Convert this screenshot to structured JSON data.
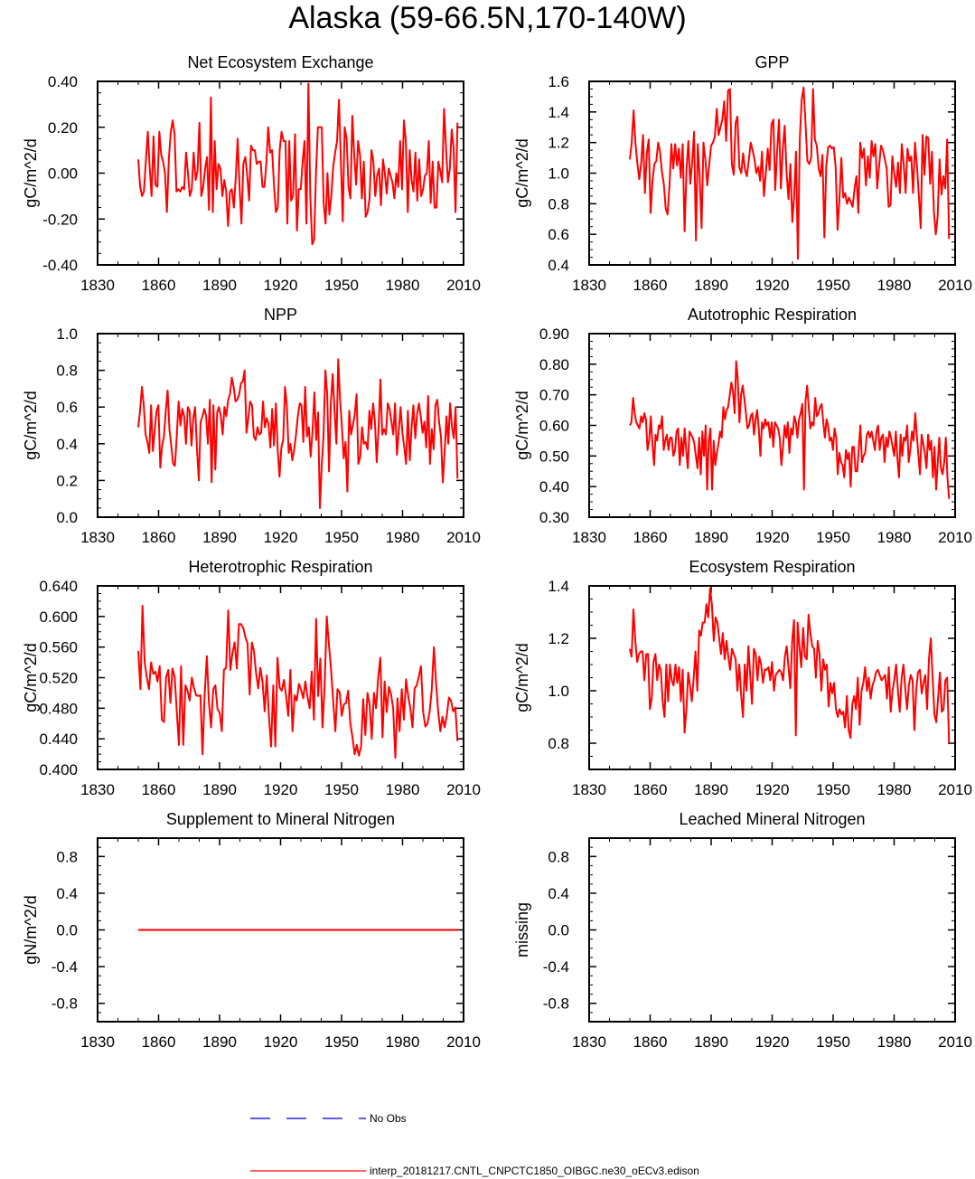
{
  "title": "Alaska (59-66.5N,170-140W)",
  "legend": [
    {
      "label": "No Obs",
      "color": "#0000cc",
      "style": "dashed"
    },
    {
      "label": "interp_20181217.CNTL_CNPCTC1850_OIBGC.ne30_oECv3.edison",
      "color": "#ff0000",
      "style": "solid"
    }
  ],
  "line_color": "#ff0000",
  "chart_data": [
    {
      "type": "line",
      "title": "Net Ecosystem Exchange",
      "ylabel": "gC/m^2/d",
      "xlim": [
        1830,
        2010
      ],
      "xticks": [
        1830,
        1860,
        1890,
        1920,
        1950,
        1980,
        2010
      ],
      "ylim": [
        -0.4,
        0.4
      ],
      "yticks": [
        "-0.40",
        "-0.20",
        "0.00",
        "0.20",
        "0.40"
      ],
      "x_start": 1850,
      "values": [
        0.06,
        -0.06,
        -0.1,
        -0.08,
        0.06,
        0.18,
        0.02,
        -0.1,
        0.16,
        -0.05,
        -0.06,
        0.18,
        0.08,
        0.05,
        0.0,
        -0.17,
        0.06,
        0.18,
        0.23,
        0.17,
        -0.08,
        -0.07,
        -0.08,
        -0.06,
        -0.07,
        0.09,
        0.0,
        -0.1,
        -0.07,
        0.09,
        -0.03,
        0.01,
        0.22,
        -0.1,
        -0.06,
        0.02,
        0.07,
        -0.16,
        0.33,
        -0.17,
        0.14,
        -0.07,
        0.04,
        0.02,
        -0.1,
        -0.03,
        -0.08,
        -0.23,
        -0.08,
        -0.07,
        -0.15,
        -0.02,
        0.15,
        -0.06,
        -0.22,
        0.04,
        0.07,
        -0.01,
        -0.12,
        0.12,
        0.1,
        0.1,
        0.04,
        0.05,
        0.05,
        -0.06,
        -0.06,
        0.04,
        0.2,
        0.09,
        0.1,
        -0.05,
        -0.17,
        -0.15,
        0.1,
        0.18,
        0.14,
        0.14,
        -0.22,
        0.14,
        -0.12,
        -0.1,
        0.17,
        -0.25,
        -0.07,
        -0.07,
        0.05,
        0.14,
        -0.22,
        0.39,
        -0.1,
        -0.31,
        -0.29,
        0.0,
        0.2,
        0.2,
        0.2,
        -0.13,
        -0.22,
        0.0,
        -0.18,
        -0.1,
        0.03,
        0.09,
        0.14,
        0.32,
        0.06,
        -0.21,
        0.2,
        0.15,
        -0.06,
        -0.11,
        0.25,
        0.08,
        -0.05,
        0.14,
        0.08,
        -0.11,
        0.05,
        -0.19,
        -0.17,
        -0.11,
        0.1,
        0.05,
        -0.1,
        -0.01,
        0.02,
        -0.14,
        0.06,
        0.0,
        -0.09,
        0.02,
        -0.01,
        -0.04,
        -0.11,
        0.0,
        -0.06,
        0.14,
        -0.07,
        0.23,
        0.14,
        -0.17,
        0.1,
        -0.03,
        -0.08,
        0.09,
        -0.12,
        0.06,
        -0.1,
        -0.07,
        -0.01,
        0.0,
        0.14,
        -0.13,
        0.05,
        -0.15,
        -0.15,
        0.05,
        0.01,
        -0.04,
        0.28,
        0.11,
        -0.04,
        0.02,
        0.19,
        0.11,
        -0.17,
        0.22
      ]
    },
    {
      "type": "line",
      "title": "GPP",
      "ylabel": "gC/m^2/d",
      "xlim": [
        1830,
        2010
      ],
      "xticks": [
        1830,
        1860,
        1890,
        1920,
        1950,
        1980,
        2010
      ],
      "ylim": [
        0.4,
        1.6
      ],
      "yticks": [
        "0.4",
        "0.6",
        "0.8",
        "1.0",
        "1.2",
        "1.4",
        "1.6"
      ],
      "x_start": 1850,
      "values": [
        1.09,
        1.2,
        1.41,
        1.19,
        1.06,
        0.96,
        1.06,
        1.25,
        0.87,
        1.13,
        1.22,
        0.74,
        0.95,
        1.06,
        1.08,
        1.2,
        1.14,
        1.01,
        0.93,
        0.77,
        0.73,
        0.92,
        1.19,
        1.03,
        1.19,
        1.05,
        1.16,
        0.97,
        1.19,
        0.62,
        1.02,
        1.21,
        0.93,
        1.07,
        1.27,
        0.56,
        1.19,
        0.98,
        0.64,
        1.2,
        1.09,
        0.92,
        1.05,
        1.18,
        1.2,
        1.24,
        1.42,
        1.25,
        1.3,
        1.35,
        1.47,
        1.21,
        1.54,
        1.55,
        1.06,
        0.99,
        1.33,
        1.37,
        1.04,
        1.0,
        1.13,
        1.02,
        0.98,
        1.09,
        1.2,
        1.15,
        1.09,
        1.0,
        1.04,
        0.95,
        1.14,
        0.85,
        1.0,
        1.16,
        1.02,
        1.32,
        1.35,
        0.89,
        1.14,
        1.35,
        0.9,
        1.16,
        1.31,
        1.0,
        0.83,
        1.06,
        0.68,
        0.85,
        1.14,
        0.44,
        1.22,
        1.48,
        1.56,
        1.33,
        1.08,
        1.06,
        1.1,
        1.55,
        1.22,
        1.18,
        1.03,
        0.98,
        1.12,
        0.58,
        1.05,
        1.17,
        1.18,
        1.16,
        1.17,
        1.04,
        0.63,
        0.83,
        1.1,
        0.84,
        0.87,
        0.8,
        0.84,
        0.81,
        0.78,
        0.9,
        0.98,
        0.74,
        1.2,
        1.1,
        1.16,
        0.92,
        1.11,
        0.97,
        1.21,
        1.11,
        1.19,
        0.9,
        1.05,
        1.18,
        1.15,
        1.09,
        1.03,
        0.78,
        0.79,
        1.11,
        1.0,
        0.91,
        1.07,
        0.87,
        1.19,
        1.06,
        0.87,
        1.16,
        1.08,
        1.11,
        0.87,
        1.2,
        1.05,
        0.86,
        0.64,
        1.25,
        0.99,
        1.24,
        1.23,
        0.93,
        1.14,
        0.75,
        0.6,
        0.72,
        1.09,
        0.86,
        0.98,
        0.9,
        1.22,
        0.57
      ]
    },
    {
      "type": "line",
      "title": "NPP",
      "ylabel": "gC/m^2/d",
      "xlim": [
        1830,
        2010
      ],
      "xticks": [
        1830,
        1860,
        1890,
        1920,
        1950,
        1980,
        2010
      ],
      "ylim": [
        0.0,
        1.0
      ],
      "yticks": [
        "0.0",
        "0.2",
        "0.4",
        "0.6",
        "0.8",
        "1.0"
      ],
      "x_start": 1850,
      "values": [
        0.49,
        0.58,
        0.71,
        0.61,
        0.45,
        0.41,
        0.35,
        0.61,
        0.36,
        0.48,
        0.58,
        0.61,
        0.27,
        0.39,
        0.44,
        0.58,
        0.69,
        0.48,
        0.39,
        0.29,
        0.28,
        0.44,
        0.63,
        0.5,
        0.59,
        0.55,
        0.4,
        0.6,
        0.58,
        0.39,
        0.54,
        0.6,
        0.37,
        0.2,
        0.52,
        0.55,
        0.59,
        0.55,
        0.4,
        0.64,
        0.19,
        0.61,
        0.26,
        0.57,
        0.6,
        0.55,
        0.45,
        0.6,
        0.55,
        0.64,
        0.67,
        0.76,
        0.71,
        0.63,
        0.64,
        0.67,
        0.73,
        0.74,
        0.8,
        0.46,
        0.54,
        0.63,
        0.61,
        0.44,
        0.42,
        0.49,
        0.45,
        0.46,
        0.63,
        0.49,
        0.54,
        0.51,
        0.38,
        0.59,
        0.39,
        0.62,
        0.37,
        0.22,
        0.38,
        0.42,
        0.71,
        0.61,
        0.35,
        0.4,
        0.31,
        0.37,
        0.45,
        0.55,
        0.62,
        0.61,
        0.41,
        0.71,
        0.44,
        0.49,
        0.33,
        0.47,
        0.68,
        0.42,
        0.57,
        0.05,
        0.28,
        0.44,
        0.8,
        0.67,
        0.25,
        0.63,
        0.78,
        0.58,
        0.4,
        0.86,
        0.64,
        0.5,
        0.32,
        0.41,
        0.14,
        0.58,
        0.45,
        0.5,
        0.56,
        0.67,
        0.29,
        0.33,
        0.49,
        0.4,
        0.41,
        0.37,
        0.58,
        0.48,
        0.62,
        0.52,
        0.3,
        0.49,
        0.75,
        0.45,
        0.48,
        0.45,
        0.62,
        0.59,
        0.52,
        0.45,
        0.62,
        0.34,
        0.47,
        0.6,
        0.46,
        0.38,
        0.29,
        0.58,
        0.31,
        0.49,
        0.61,
        0.43,
        0.56,
        0.62,
        0.55,
        0.46,
        0.52,
        0.38,
        0.66,
        0.29,
        0.48,
        0.37,
        0.61,
        0.64,
        0.52,
        0.44,
        0.19,
        0.35,
        0.55,
        0.4,
        0.62,
        0.49,
        0.43,
        0.6,
        0.21
      ]
    },
    {
      "type": "line",
      "title": "Autotrophic Respiration",
      "ylabel": "gC/m^2/d",
      "xlim": [
        1830,
        2010
      ],
      "xticks": [
        1830,
        1860,
        1890,
        1920,
        1950,
        1980,
        2010
      ],
      "ylim": [
        0.3,
        0.9
      ],
      "yticks": [
        "0.30",
        "0.40",
        "0.50",
        "0.60",
        "0.70",
        "0.80",
        "0.90"
      ],
      "x_start": 1850,
      "values": [
        0.6,
        0.61,
        0.69,
        0.64,
        0.61,
        0.6,
        0.59,
        0.63,
        0.61,
        0.64,
        0.62,
        0.52,
        0.55,
        0.63,
        0.54,
        0.47,
        0.57,
        0.55,
        0.6,
        0.59,
        0.63,
        0.52,
        0.55,
        0.57,
        0.52,
        0.56,
        0.56,
        0.5,
        0.52,
        0.58,
        0.59,
        0.47,
        0.56,
        0.5,
        0.59,
        0.52,
        0.46,
        0.58,
        0.57,
        0.56,
        0.54,
        0.5,
        0.46,
        0.56,
        0.44,
        0.58,
        0.5,
        0.6,
        0.39,
        0.55,
        0.59,
        0.39,
        0.55,
        0.47,
        0.51,
        0.54,
        0.58,
        0.56,
        0.66,
        0.62,
        0.65,
        0.66,
        0.7,
        0.74,
        0.71,
        0.64,
        0.81,
        0.75,
        0.61,
        0.7,
        0.73,
        0.69,
        0.64,
        0.59,
        0.6,
        0.63,
        0.64,
        0.57,
        0.62,
        0.65,
        0.59,
        0.5,
        0.61,
        0.59,
        0.62,
        0.6,
        0.61,
        0.56,
        0.61,
        0.53,
        0.61,
        0.6,
        0.59,
        0.56,
        0.47,
        0.53,
        0.6,
        0.56,
        0.61,
        0.51,
        0.59,
        0.57,
        0.63,
        0.61,
        0.56,
        0.62,
        0.64,
        0.67,
        0.39,
        0.68,
        0.73,
        0.66,
        0.59,
        0.61,
        0.6,
        0.69,
        0.63,
        0.64,
        0.66,
        0.67,
        0.61,
        0.56,
        0.62,
        0.6,
        0.55,
        0.56,
        0.52,
        0.59,
        0.56,
        0.44,
        0.51,
        0.48,
        0.47,
        0.43,
        0.52,
        0.49,
        0.51,
        0.4,
        0.53,
        0.53,
        0.45,
        0.45,
        0.52,
        0.6,
        0.48,
        0.5,
        0.51,
        0.57,
        0.58,
        0.56,
        0.58,
        0.55,
        0.52,
        0.58,
        0.6,
        0.52,
        0.56,
        0.57,
        0.48,
        0.56,
        0.53,
        0.58,
        0.56,
        0.53,
        0.5,
        0.58,
        0.49,
        0.43,
        0.57,
        0.5,
        0.56,
        0.55,
        0.6,
        0.48,
        0.52,
        0.58,
        0.55,
        0.64,
        0.57,
        0.5,
        0.44,
        0.57,
        0.54,
        0.51,
        0.46,
        0.57,
        0.52,
        0.55,
        0.43,
        0.53,
        0.39,
        0.48,
        0.56,
        0.46,
        0.44,
        0.48,
        0.56,
        0.43,
        0.36
      ]
    },
    {
      "type": "line",
      "title": "Heterotrophic Respiration",
      "ylabel": "gC/m^2/d",
      "xlim": [
        1830,
        2010
      ],
      "xticks": [
        1830,
        1860,
        1890,
        1920,
        1950,
        1980,
        2010
      ],
      "ylim": [
        0.4,
        0.64
      ],
      "yticks": [
        "0.400",
        "0.440",
        "0.480",
        "0.520",
        "0.560",
        "0.600",
        "0.640"
      ],
      "x_start": 1850,
      "values": [
        0.555,
        0.505,
        0.614,
        0.54,
        0.52,
        0.505,
        0.54,
        0.525,
        0.528,
        0.515,
        0.535,
        0.465,
        0.462,
        0.52,
        0.53,
        0.487,
        0.532,
        0.521,
        0.475,
        0.432,
        0.535,
        0.432,
        0.51,
        0.503,
        0.49,
        0.52,
        0.507,
        0.497,
        0.496,
        0.497,
        0.42,
        0.498,
        0.548,
        0.488,
        0.455,
        0.505,
        0.51,
        0.479,
        0.474,
        0.45,
        0.53,
        0.533,
        0.608,
        0.53,
        0.552,
        0.566,
        0.532,
        0.59,
        0.59,
        0.585,
        0.573,
        0.565,
        0.498,
        0.566,
        0.555,
        0.526,
        0.506,
        0.533,
        0.515,
        0.476,
        0.523,
        0.47,
        0.43,
        0.51,
        0.43,
        0.546,
        0.507,
        0.503,
        0.517,
        0.496,
        0.47,
        0.53,
        0.45,
        0.497,
        0.49,
        0.512,
        0.504,
        0.493,
        0.515,
        0.495,
        0.48,
        0.528,
        0.465,
        0.597,
        0.496,
        0.545,
        0.455,
        0.511,
        0.6,
        0.563,
        0.53,
        0.49,
        0.45,
        0.505,
        0.501,
        0.47,
        0.485,
        0.487,
        0.503,
        0.46,
        0.442,
        0.42,
        0.432,
        0.418,
        0.43,
        0.492,
        0.445,
        0.5,
        0.485,
        0.44,
        0.5,
        0.48,
        0.52,
        0.546,
        0.442,
        0.515,
        0.475,
        0.508,
        0.498,
        0.48,
        0.415,
        0.493,
        0.45,
        0.505,
        0.465,
        0.518,
        0.496,
        0.48,
        0.455,
        0.506,
        0.51,
        0.522,
        0.535,
        0.475,
        0.456,
        0.46,
        0.475,
        0.504,
        0.56,
        0.514,
        0.476,
        0.45,
        0.469,
        0.455,
        0.47,
        0.494,
        0.49,
        0.476,
        0.481,
        0.437
      ]
    },
    {
      "type": "line",
      "title": "Ecosystem Respiration",
      "ylabel": "gC/m^2/d",
      "xlim": [
        1830,
        2010
      ],
      "xticks": [
        1830,
        1860,
        1890,
        1920,
        1950,
        1980,
        2010
      ],
      "ylim": [
        0.7,
        1.4
      ],
      "yticks": [
        "0.8",
        "1.0",
        "1.2",
        "1.4"
      ],
      "x_start": 1850,
      "values": [
        1.16,
        1.13,
        1.31,
        1.19,
        1.11,
        1.14,
        1.15,
        1.15,
        1.04,
        1.14,
        1.14,
        0.93,
        0.97,
        1.11,
        1.14,
        1.04,
        1.1,
        1.08,
        0.96,
        0.9,
        1.1,
        0.96,
        1.1,
        1.04,
        1.02,
        1.1,
        1.03,
        1.09,
        0.96,
        1.08,
        0.84,
        0.93,
        1.07,
        1.02,
        0.96,
        1.05,
        1.15,
        1.0,
        1.23,
        1.21,
        1.26,
        1.26,
        1.33,
        1.28,
        1.39,
        1.33,
        1.19,
        1.28,
        1.26,
        1.2,
        1.14,
        1.22,
        1.12,
        1.19,
        1.13,
        1.08,
        1.16,
        1.14,
        1.12,
        1.0,
        1.1,
        0.99,
        0.9,
        1.1,
        1.0,
        1.17,
        1.06,
        0.95,
        1.16,
        1.14,
        1.04,
        1.13,
        1.1,
        1.03,
        1.08,
        1.08,
        1.09,
        1.04,
        1.11,
        1.0,
        1.06,
        1.07,
        1.08,
        1.07,
        1.04,
        1.13,
        1.17,
        1.09,
        1.01,
        1.19,
        1.27,
        0.83,
        1.26,
        1.17,
        1.09,
        1.24,
        1.13,
        1.12,
        1.29,
        1.22,
        1.17,
        1.16,
        1.05,
        1.19,
        1.14,
        1.0,
        1.12,
        1.08,
        1.1,
        0.94,
        1.03,
        0.99,
        1.03,
        0.93,
        0.9,
        0.93,
        0.91,
        0.92,
        0.86,
        0.98,
        0.85,
        0.82,
        0.95,
        0.98,
        0.93,
        1.05,
        0.87,
        1.0,
        1.03,
        1.09,
        1.0,
        1.05,
        0.97,
        1.02,
        1.04,
        1.07,
        1.08,
        1.06,
        1.04,
        1.05,
        1.06,
        0.97,
        1.09,
        0.92,
        1.0,
        1.04,
        1.1,
        1.0,
        0.92,
        1.05,
        1.1,
        1.01,
        0.93,
        1.02,
        1.06,
        1.04,
        0.85,
        1.0,
        1.07,
        1.08,
        0.99,
        1.03,
        1.06,
        0.93,
        1.12,
        1.2,
        1.05,
        0.91,
        0.88,
        0.97,
        1.07,
        0.92,
        0.93,
        1.04,
        1.05,
        0.8
      ]
    },
    {
      "type": "line",
      "title": "Supplement to Mineral Nitrogen",
      "ylabel": "gN/m^2/d",
      "xlim": [
        1830,
        2010
      ],
      "xticks": [
        1830,
        1860,
        1890,
        1920,
        1950,
        1980,
        2010
      ],
      "ylim": [
        -1.0,
        1.0
      ],
      "yticks": [
        "-0.8",
        "-0.4",
        "0.0",
        "0.4",
        "0.8"
      ],
      "x_start": 1850,
      "values": [
        0.0,
        0.0
      ]
    },
    {
      "type": "line",
      "title": "Leached Mineral Nitrogen",
      "ylabel": "missing",
      "xlim": [
        1830,
        2010
      ],
      "xticks": [
        1830,
        1860,
        1890,
        1920,
        1950,
        1980,
        2010
      ],
      "ylim": [
        -1.0,
        1.0
      ],
      "yticks": [
        "-0.8",
        "-0.4",
        "0.0",
        "0.4",
        "0.8"
      ],
      "x_start": 1850,
      "values": []
    }
  ]
}
